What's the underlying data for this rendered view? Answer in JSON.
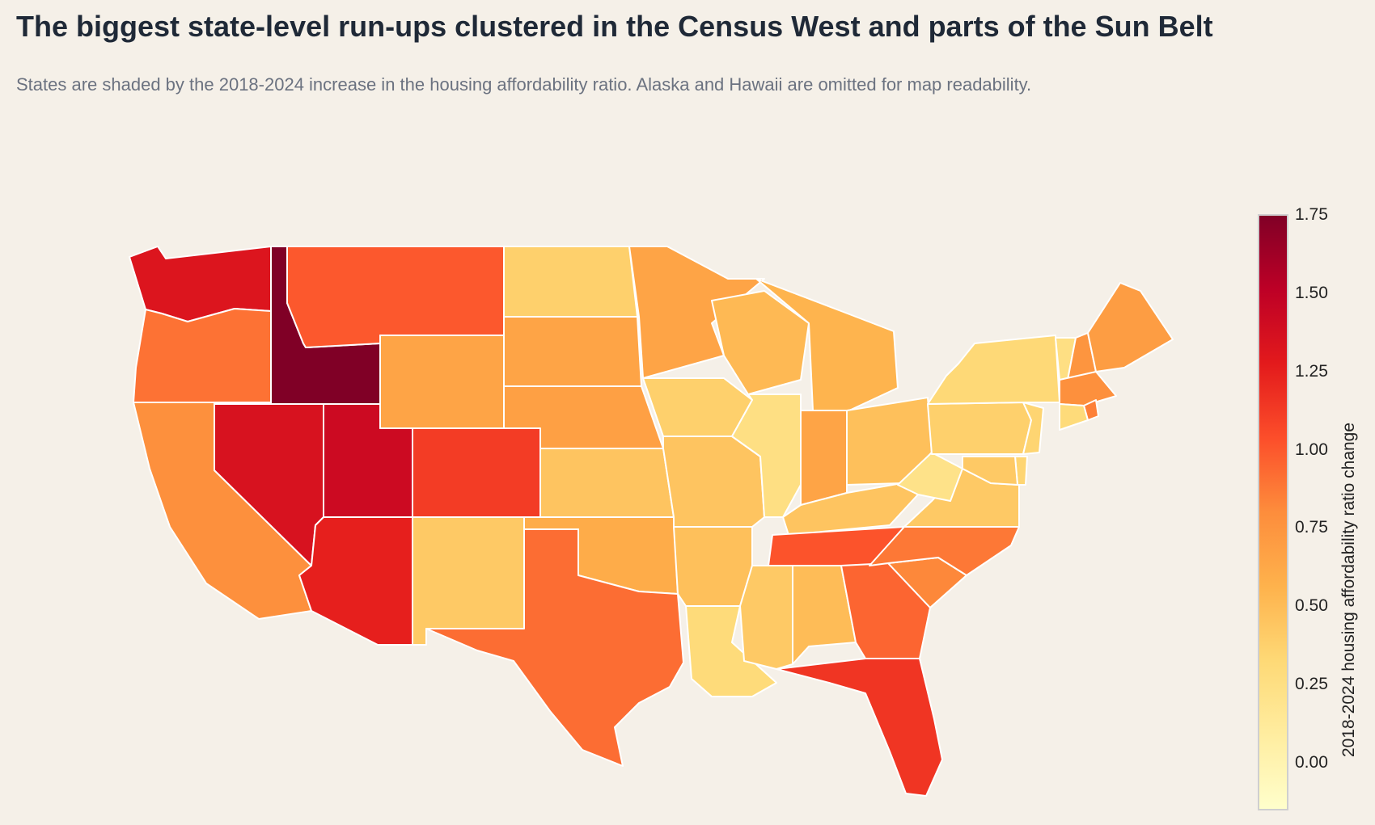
{
  "title": "The biggest state-level run-ups clustered in the Census West and parts of the Sun Belt",
  "subtitle": "States are shaded by the 2018-2024 increase in the housing affordability ratio. Alaska and Hawaii are omitted for map readability.",
  "colorbar": {
    "label": "2018-2024 housing affordability ratio change",
    "min": -0.15,
    "max": 1.75,
    "ticks": [
      "1.75",
      "1.50",
      "1.25",
      "1.00",
      "0.75",
      "0.50",
      "0.25",
      "0.00"
    ],
    "tick_values": [
      1.75,
      1.5,
      1.25,
      1.0,
      0.75,
      0.5,
      0.25,
      0.0
    ],
    "colorscale": "YlOrRd"
  },
  "chart_data": {
    "type": "choropleth",
    "region": "Contiguous United States",
    "value_label": "2018-2024 housing affordability ratio change",
    "states": [
      {
        "name": "Washington",
        "value": 1.32
      },
      {
        "name": "Oregon",
        "value": 0.9
      },
      {
        "name": "California",
        "value": 0.78
      },
      {
        "name": "Idaho",
        "value": 1.75
      },
      {
        "name": "Nevada",
        "value": 1.35
      },
      {
        "name": "Utah",
        "value": 1.42
      },
      {
        "name": "Arizona",
        "value": 1.25
      },
      {
        "name": "Montana",
        "value": 1.0
      },
      {
        "name": "Wyoming",
        "value": 0.65
      },
      {
        "name": "Colorado",
        "value": 1.12
      },
      {
        "name": "New Mexico",
        "value": 0.42
      },
      {
        "name": "North Dakota",
        "value": 0.38
      },
      {
        "name": "South Dakota",
        "value": 0.65
      },
      {
        "name": "Nebraska",
        "value": 0.68
      },
      {
        "name": "Kansas",
        "value": 0.45
      },
      {
        "name": "Oklahoma",
        "value": 0.6
      },
      {
        "name": "Texas",
        "value": 0.92
      },
      {
        "name": "Minnesota",
        "value": 0.65
      },
      {
        "name": "Iowa",
        "value": 0.38
      },
      {
        "name": "Missouri",
        "value": 0.45
      },
      {
        "name": "Arkansas",
        "value": 0.48
      },
      {
        "name": "Louisiana",
        "value": 0.3
      },
      {
        "name": "Wisconsin",
        "value": 0.52
      },
      {
        "name": "Illinois",
        "value": 0.25
      },
      {
        "name": "Michigan",
        "value": 0.55
      },
      {
        "name": "Indiana",
        "value": 0.65
      },
      {
        "name": "Ohio",
        "value": 0.48
      },
      {
        "name": "Kentucky",
        "value": 0.45
      },
      {
        "name": "Tennessee",
        "value": 1.02
      },
      {
        "name": "Mississippi",
        "value": 0.42
      },
      {
        "name": "Alabama",
        "value": 0.5
      },
      {
        "name": "Georgia",
        "value": 0.95
      },
      {
        "name": "Florida",
        "value": 1.15
      },
      {
        "name": "South Carolina",
        "value": 0.82
      },
      {
        "name": "North Carolina",
        "value": 0.88
      },
      {
        "name": "Virginia",
        "value": 0.42
      },
      {
        "name": "West Virginia",
        "value": 0.22
      },
      {
        "name": "Pennsylvania",
        "value": 0.38
      },
      {
        "name": "New York",
        "value": 0.32
      },
      {
        "name": "Vermont",
        "value": 0.25
      },
      {
        "name": "New Hampshire",
        "value": 0.75
      },
      {
        "name": "Maine",
        "value": 0.7
      },
      {
        "name": "Massachusetts",
        "value": 0.78
      },
      {
        "name": "Rhode Island",
        "value": 0.85
      },
      {
        "name": "Connecticut",
        "value": 0.3
      },
      {
        "name": "New Jersey",
        "value": 0.35
      },
      {
        "name": "Delaware",
        "value": 0.35
      },
      {
        "name": "Maryland",
        "value": 0.42
      }
    ]
  }
}
